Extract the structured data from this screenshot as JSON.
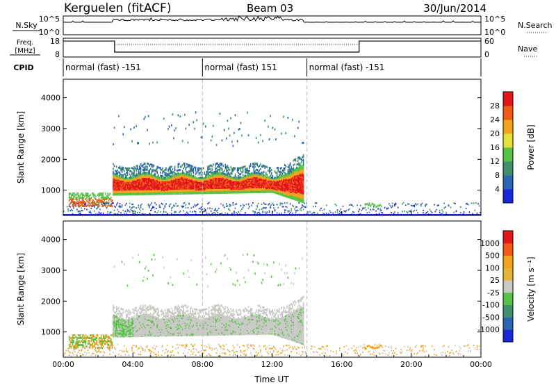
{
  "header": {
    "station": "Kerguelen (fitACF)",
    "beam": "Beam 03",
    "date": "30/Jun/2014"
  },
  "left_labels": {
    "nsky": "N.Sky",
    "freq_line1": "Freq.",
    "freq_line2": "[MHz]",
    "cpid": "CPID"
  },
  "right_labels": {
    "nsearch": "N.Search",
    "nave": "Nave"
  },
  "nsky_ticks": {
    "top": "10^5",
    "bottom": "10^0"
  },
  "nsearch_ticks": {
    "top": "10^5",
    "bottom": "10^0"
  },
  "freq_ticks": {
    "top": "18",
    "bottom": "8"
  },
  "nave_ticks": {
    "top": "60",
    "bottom": "0"
  },
  "cpid_segments": [
    {
      "label": "normal (fast) -151",
      "start_hour": 0,
      "end_hour": 8
    },
    {
      "label": "normal (fast) 151",
      "start_hour": 8,
      "end_hour": 14
    },
    {
      "label": "normal (fast) -151",
      "start_hour": 14,
      "end_hour": 24
    }
  ],
  "chart_data": [
    {
      "type": "heatmap",
      "name": "power-panel",
      "ylabel": "Slant Range [km]",
      "xlabel": "",
      "xlim": [
        0,
        24
      ],
      "ylim": [
        180,
        4600
      ],
      "yticks": [
        1000,
        2000,
        3000,
        4000
      ],
      "colorbar": {
        "label": "Power [dB]",
        "ticks": [
          "4",
          "8",
          "12",
          "16",
          "20",
          "24",
          "28"
        ],
        "colors": [
          "#1b28d8",
          "#2c64b4",
          "#3f8f6b",
          "#56c243",
          "#e4e13a",
          "#f0a21f",
          "#f05a16",
          "#e1151a"
        ]
      }
    },
    {
      "type": "heatmap",
      "name": "velocity-panel",
      "ylabel": "Slant Range [km]",
      "xlabel": "Time UT",
      "xlim": [
        0,
        24
      ],
      "ylim": [
        180,
        4600
      ],
      "yticks": [
        1000,
        2000,
        3000,
        4000
      ],
      "xticks": [
        "00:00",
        "04:00",
        "08:00",
        "12:00",
        "16:00",
        "20:00",
        "00:00"
      ],
      "colorbar": {
        "label": "Velocity [m s⁻¹]",
        "ticks": [
          "1000",
          "500",
          "100",
          "25",
          "-25",
          "-100",
          "-500",
          "-1000"
        ],
        "colors": [
          "#1b28d8",
          "#2c64b4",
          "#3f8f6b",
          "#56c243",
          "#c8c8c4",
          "#e4b43a",
          "#f0a21f",
          "#f05a16",
          "#e1151a"
        ]
      }
    }
  ]
}
